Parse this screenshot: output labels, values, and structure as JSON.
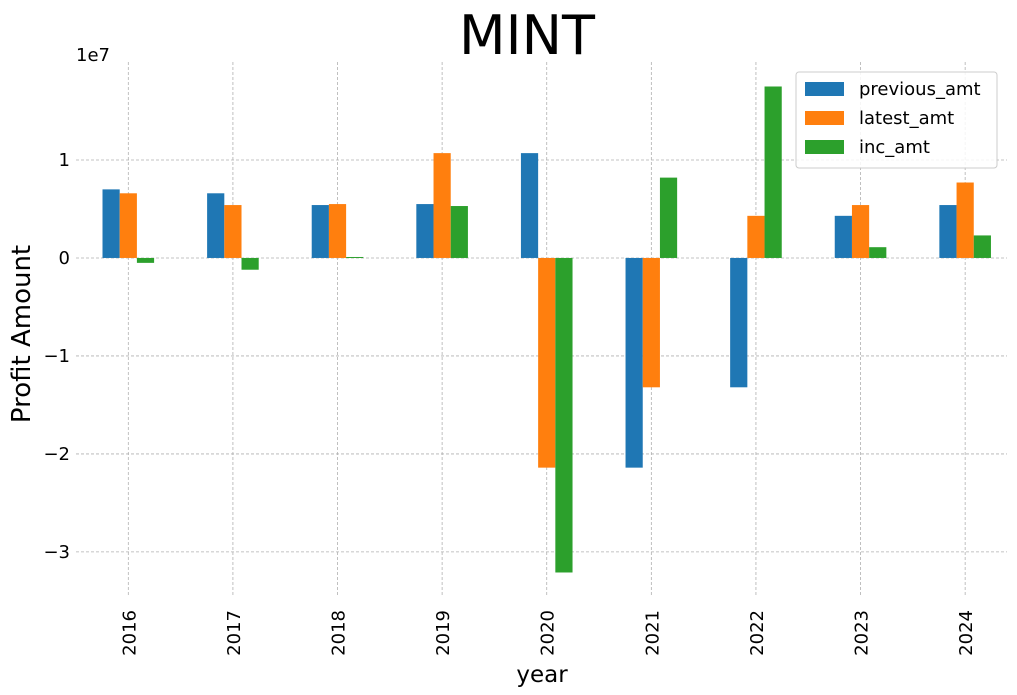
{
  "chart_data": {
    "type": "bar",
    "title": "MINT",
    "xlabel": "year",
    "ylabel": "Profit Amount",
    "y_offset_label": "1e7",
    "categories": [
      "2016",
      "2017",
      "2018",
      "2019",
      "2020",
      "2021",
      "2022",
      "2023",
      "2024"
    ],
    "series": [
      {
        "name": "previous_amt",
        "color": "#1f77b4",
        "values": [
          7000000,
          6600000,
          5400000,
          5500000,
          10700000,
          -21400000,
          -13200000,
          4300000,
          5400000
        ]
      },
      {
        "name": "latest_amt",
        "color": "#ff7f0e",
        "values": [
          6600000,
          5400000,
          5500000,
          10700000,
          -21400000,
          -13200000,
          4300000,
          5400000,
          7700000
        ]
      },
      {
        "name": "inc_amt",
        "color": "#2ca02c",
        "values": [
          -500000,
          -1200000,
          100000,
          5300000,
          -32100000,
          8200000,
          17500000,
          1100000,
          2300000
        ]
      }
    ],
    "yticks": [
      -30000000,
      -20000000,
      -10000000,
      0,
      10000000
    ],
    "ytick_labels": [
      "−3",
      "−2",
      "−1",
      "0",
      "1"
    ],
    "ylim": [
      -34500000,
      20000000
    ],
    "grid": true,
    "legend": "top-right"
  }
}
